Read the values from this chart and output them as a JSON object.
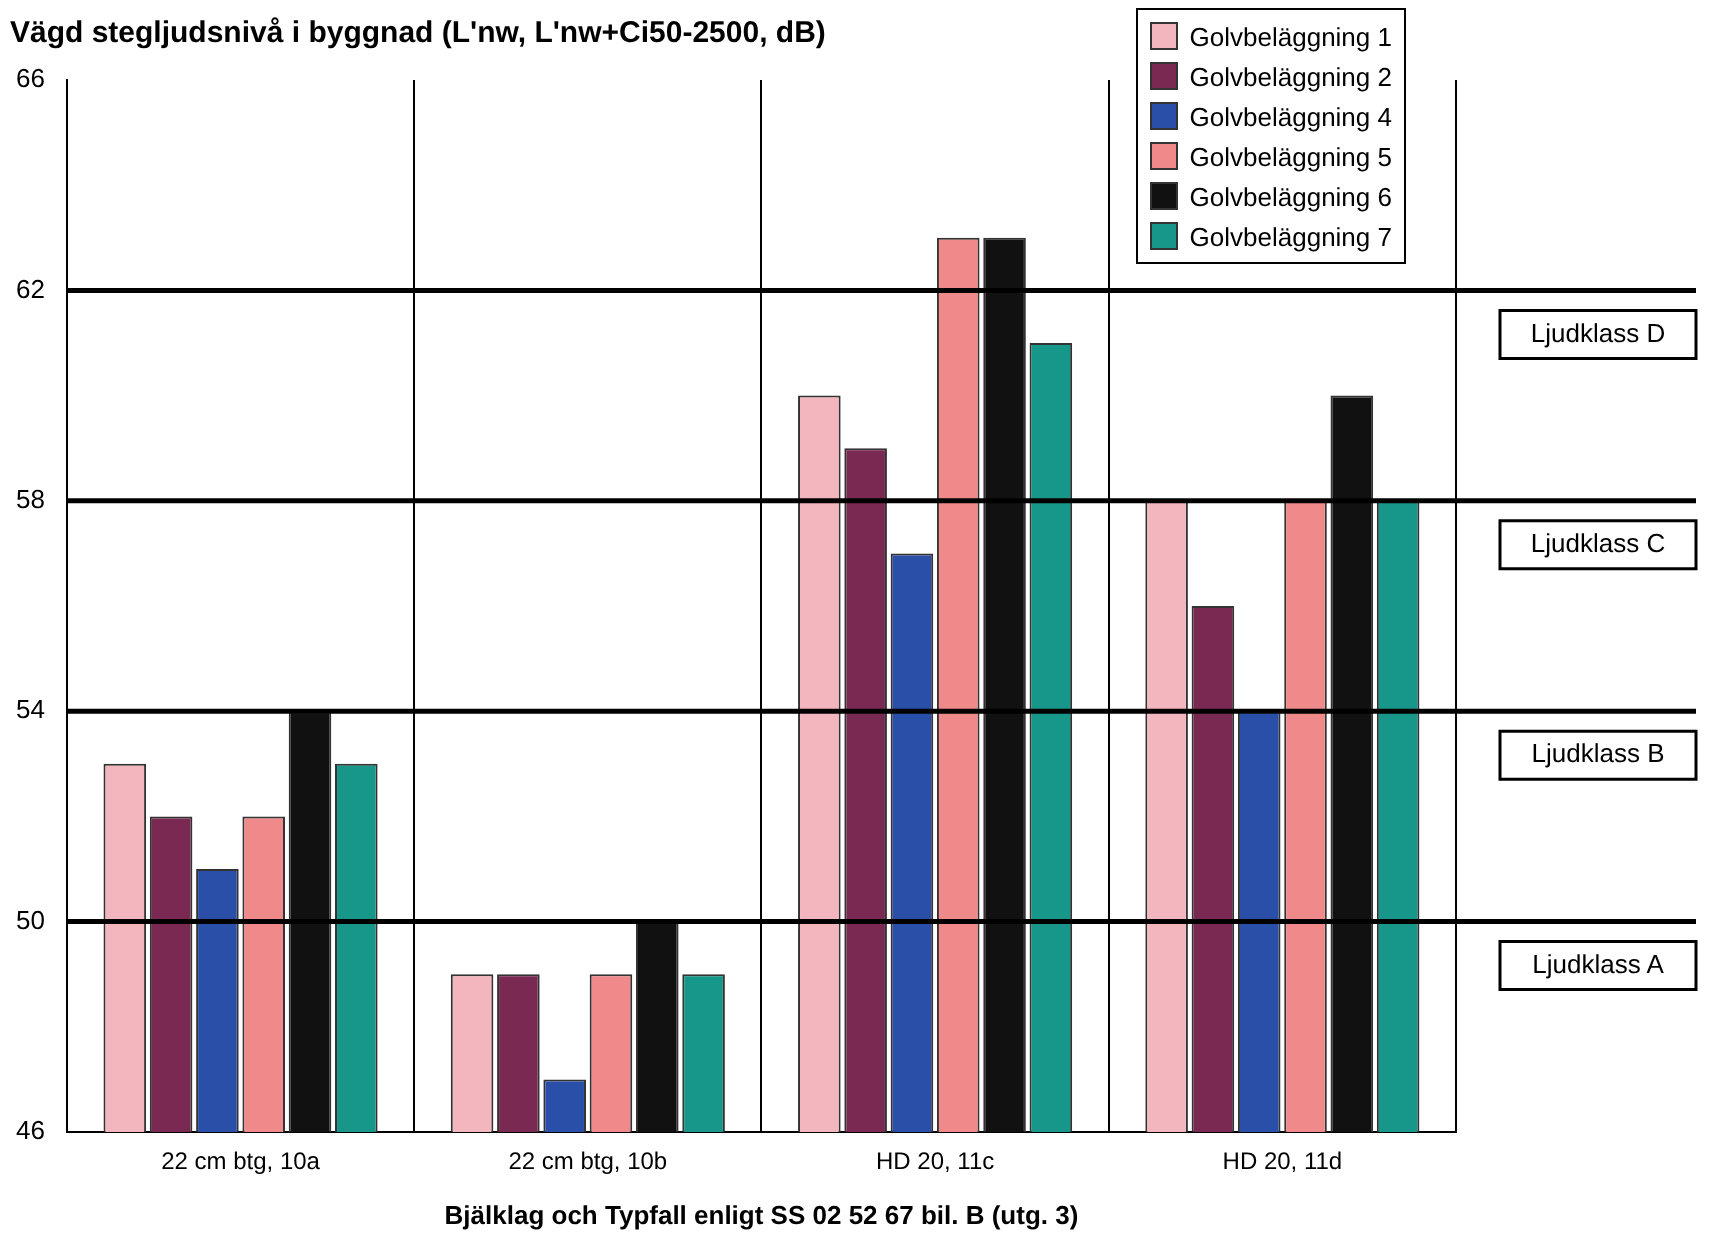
{
  "chart_data": {
    "type": "bar",
    "title": "Vägd stegljudsnivå i byggnad (L'nw, L'nw+Ci50-2500, dB)",
    "xlabel": "Bjälklag och Typfall enligt SS 02 52 67 bil. B (utg. 3)",
    "categories": [
      "22 cm btg, 10a",
      "22 cm btg, 10b",
      "HD 20, 11c",
      "HD 20, 11d"
    ],
    "series": [
      {
        "name": "Golvbeläggning 1",
        "color": "#f4b6be",
        "values": [
          53,
          49,
          60,
          58
        ]
      },
      {
        "name": "Golvbeläggning 2",
        "color": "#7a2a52",
        "values": [
          52,
          49,
          59,
          56
        ]
      },
      {
        "name": "Golvbeläggning 4",
        "color": "#2a4fa8",
        "values": [
          51,
          47,
          57,
          54
        ]
      },
      {
        "name": "Golvbeläggning 5",
        "color": "#f08a8a",
        "values": [
          52,
          49,
          63,
          58
        ]
      },
      {
        "name": "Golvbeläggning 6",
        "color": "#111111",
        "values": [
          54,
          50,
          63,
          60
        ]
      },
      {
        "name": "Golvbeläggning 7",
        "color": "#17978a",
        "values": [
          53,
          49,
          61,
          58
        ]
      }
    ],
    "ylim": [
      46,
      66
    ],
    "yticks": [
      46,
      50,
      54,
      58,
      62,
      66
    ],
    "grid": "x",
    "legend": "top right",
    "ref_lines": [
      {
        "axis": "y",
        "value": 62,
        "label": "Ljudklass D",
        "color": "#000000"
      },
      {
        "axis": "y",
        "value": 58,
        "label": "Ljudklass C",
        "color": "#000000"
      },
      {
        "axis": "y",
        "value": 54,
        "label": "Ljudklass B",
        "color": "#000000"
      },
      {
        "axis": "y",
        "value": 50,
        "label": "Ljudklass A",
        "color": "#000000"
      }
    ]
  }
}
